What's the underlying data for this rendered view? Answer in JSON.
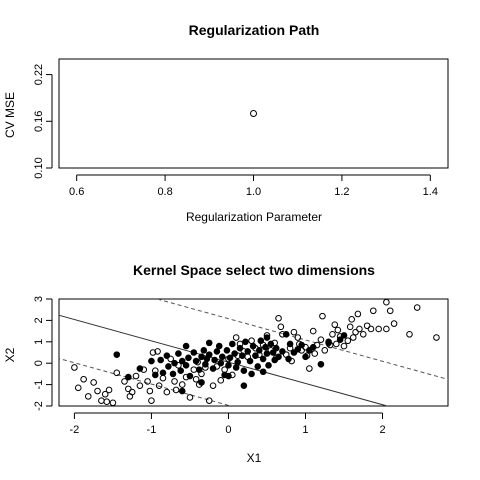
{
  "chart_data": [
    {
      "type": "scatter",
      "title": "Regularization Path",
      "xlabel": "Regularization Parameter",
      "ylabel": "CV MSE",
      "xlim": [
        0.56,
        1.44
      ],
      "ylim": [
        0.1,
        0.24
      ],
      "x_ticks": [
        "0.6",
        "0.8",
        "1.0",
        "1.2",
        "1.4"
      ],
      "y_ticks": [
        "0.10",
        "0.16",
        "0.22"
      ],
      "grid": false,
      "points": [
        {
          "x": 1.0,
          "y": 0.17
        }
      ]
    },
    {
      "type": "scatter",
      "title": "Kernel Space select two dimensions",
      "xlabel": "X1",
      "ylabel": "X2",
      "xlim": [
        -2.2,
        2.85
      ],
      "ylim": [
        -2.0,
        3.0
      ],
      "x_ticks": [
        "-2",
        "-1",
        "0",
        "1",
        "2"
      ],
      "y_ticks": [
        "-2",
        "-1",
        "0",
        "1",
        "2",
        "3"
      ],
      "grid": false,
      "decision_boundary": {
        "intercept": 0.05,
        "slope": -0.995
      },
      "margins": [
        {
          "intercept": 2.08,
          "slope": -0.995
        },
        {
          "intercept": -1.97,
          "slope": -0.995
        }
      ],
      "series": [
        {
          "marker": "open-circle",
          "points": [
            [
              -2.0,
              -0.2
            ],
            [
              -1.95,
              -1.15
            ],
            [
              -1.88,
              -0.75
            ],
            [
              -1.82,
              -1.55
            ],
            [
              -1.75,
              -0.9
            ],
            [
              -1.7,
              -1.3
            ],
            [
              -1.65,
              -1.75
            ],
            [
              -1.6,
              -1.45
            ],
            [
              -1.58,
              -1.8
            ],
            [
              -1.55,
              -1.25
            ],
            [
              -1.5,
              -1.85
            ],
            [
              -1.45,
              -0.45
            ],
            [
              -1.35,
              -0.85
            ],
            [
              -1.3,
              -1.2
            ],
            [
              -1.28,
              -1.55
            ],
            [
              -1.25,
              -1.35
            ],
            [
              -1.2,
              -0.6
            ],
            [
              -1.15,
              -1.05
            ],
            [
              -1.1,
              -0.3
            ],
            [
              -1.05,
              -0.85
            ],
            [
              -1.02,
              -1.3
            ],
            [
              -1.0,
              -1.75
            ],
            [
              -0.98,
              0.5
            ],
            [
              -0.95,
              -0.35
            ],
            [
              -0.92,
              0.55
            ],
            [
              -0.9,
              -1.05
            ],
            [
              -0.85,
              -0.7
            ],
            [
              -0.8,
              -1.35
            ],
            [
              -0.75,
              0.2
            ],
            [
              -0.7,
              -0.85
            ],
            [
              -0.68,
              -1.25
            ],
            [
              -0.65,
              -0.1
            ],
            [
              -0.6,
              -1.0
            ],
            [
              -0.55,
              -0.65
            ],
            [
              -0.5,
              -1.6
            ],
            [
              -0.45,
              -0.3
            ],
            [
              -0.42,
              -0.75
            ],
            [
              -0.4,
              0.05
            ],
            [
              -0.38,
              -1.0
            ],
            [
              -0.35,
              -0.5
            ],
            [
              -0.3,
              -0.2
            ],
            [
              -0.25,
              -1.75
            ],
            [
              -0.2,
              -1.05
            ],
            [
              -0.15,
              -0.15
            ],
            [
              -0.1,
              -0.8
            ],
            [
              -0.05,
              -0.3
            ],
            [
              0.0,
              0.2
            ],
            [
              0.05,
              -0.55
            ],
            [
              0.1,
              1.2
            ],
            [
              0.12,
              0.35
            ],
            [
              0.15,
              0.9
            ],
            [
              0.2,
              0.55
            ],
            [
              0.25,
              0.3
            ],
            [
              0.3,
              1.05
            ],
            [
              0.35,
              0.7
            ],
            [
              0.4,
              0.4
            ],
            [
              0.45,
              0.85
            ],
            [
              0.5,
              1.3
            ],
            [
              0.55,
              0.6
            ],
            [
              0.6,
              0.95
            ],
            [
              0.62,
              0.25
            ],
            [
              0.65,
              2.1
            ],
            [
              0.68,
              1.7
            ],
            [
              0.7,
              1.35
            ],
            [
              0.75,
              0.4
            ],
            [
              0.8,
              0.7
            ],
            [
              0.82,
              0.1
            ],
            [
              0.85,
              1.45
            ],
            [
              0.9,
              1.2
            ],
            [
              0.92,
              0.9
            ],
            [
              0.95,
              0.6
            ],
            [
              1.0,
              0.75
            ],
            [
              1.02,
              0.35
            ],
            [
              1.05,
              -0.25
            ],
            [
              1.1,
              1.5
            ],
            [
              1.12,
              0.45
            ],
            [
              1.15,
              0.85
            ],
            [
              1.2,
              1.1
            ],
            [
              1.22,
              2.2
            ],
            [
              1.25,
              0.6
            ],
            [
              1.3,
              0.95
            ],
            [
              1.32,
              0.85
            ],
            [
              1.35,
              1.35
            ],
            [
              1.38,
              1.8
            ],
            [
              1.4,
              0.9
            ],
            [
              1.42,
              1.55
            ],
            [
              1.45,
              1.25
            ],
            [
              1.5,
              0.8
            ],
            [
              1.55,
              1.05
            ],
            [
              1.58,
              1.7
            ],
            [
              1.6,
              2.05
            ],
            [
              1.62,
              1.2
            ],
            [
              1.65,
              1.45
            ],
            [
              1.68,
              2.3
            ],
            [
              1.7,
              1.6
            ],
            [
              1.75,
              1.35
            ],
            [
              1.8,
              1.75
            ],
            [
              1.85,
              1.6
            ],
            [
              1.88,
              2.45
            ],
            [
              1.95,
              1.6
            ],
            [
              2.05,
              1.6
            ],
            [
              2.1,
              2.45
            ],
            [
              2.15,
              1.85
            ],
            [
              2.35,
              1.35
            ],
            [
              2.45,
              2.6
            ],
            [
              2.7,
              1.2
            ],
            [
              2.05,
              2.85
            ]
          ]
        },
        {
          "marker": "filled-circle",
          "points": [
            [
              -1.45,
              0.4
            ],
            [
              -1.3,
              -0.65
            ],
            [
              -1.15,
              -0.25
            ],
            [
              -1.0,
              0.1
            ],
            [
              -0.95,
              -0.55
            ],
            [
              -0.88,
              0.15
            ],
            [
              -0.85,
              -0.45
            ],
            [
              -0.8,
              0.35
            ],
            [
              -0.78,
              -0.15
            ],
            [
              -0.72,
              -0.5
            ],
            [
              -0.7,
              0.0
            ],
            [
              -0.65,
              0.45
            ],
            [
              -0.62,
              -0.35
            ],
            [
              -0.6,
              0.1
            ],
            [
              -0.55,
              -0.1
            ],
            [
              -0.52,
              0.25
            ],
            [
              -0.5,
              -0.6
            ],
            [
              -0.45,
              0.5
            ],
            [
              -0.42,
              0.1
            ],
            [
              -0.38,
              -0.3
            ],
            [
              -0.35,
              0.3
            ],
            [
              -0.32,
              0.6
            ],
            [
              -0.3,
              -0.05
            ],
            [
              -0.28,
              0.2
            ],
            [
              -0.25,
              0.4
            ],
            [
              -0.2,
              -0.25
            ],
            [
              -0.18,
              0.15
            ],
            [
              -0.15,
              0.55
            ],
            [
              -0.12,
              0.8
            ],
            [
              -0.1,
              0.0
            ],
            [
              -0.08,
              0.3
            ],
            [
              -0.05,
              -0.55
            ],
            [
              -0.02,
              0.6
            ],
            [
              0.0,
              -0.1
            ],
            [
              0.02,
              0.25
            ],
            [
              0.05,
              0.9
            ],
            [
              0.08,
              0.45
            ],
            [
              0.1,
              -0.2
            ],
            [
              0.12,
              0.05
            ],
            [
              0.15,
              0.7
            ],
            [
              0.18,
              0.35
            ],
            [
              0.2,
              -0.35
            ],
            [
              0.22,
              1.0
            ],
            [
              0.25,
              0.55
            ],
            [
              0.28,
              0.1
            ],
            [
              0.3,
              -0.5
            ],
            [
              0.32,
              0.8
            ],
            [
              0.35,
              0.35
            ],
            [
              0.38,
              -0.15
            ],
            [
              0.4,
              0.6
            ],
            [
              0.42,
              1.05
            ],
            [
              0.45,
              0.2
            ],
            [
              0.48,
              0.75
            ],
            [
              0.5,
              0.45
            ],
            [
              0.52,
              -0.1
            ],
            [
              0.55,
              0.9
            ],
            [
              0.58,
              0.5
            ],
            [
              0.6,
              0.15
            ],
            [
              0.62,
              0.7
            ],
            [
              0.65,
              0.3
            ],
            [
              0.7,
              0.55
            ],
            [
              0.75,
              1.35
            ],
            [
              0.78,
              0.2
            ],
            [
              0.8,
              0.9
            ],
            [
              0.85,
              0.5
            ],
            [
              0.9,
              0.65
            ],
            [
              0.95,
              0.85
            ],
            [
              1.0,
              0.3
            ],
            [
              1.05,
              0.6
            ],
            [
              1.1,
              0.75
            ],
            [
              1.2,
              -0.05
            ],
            [
              1.3,
              1.0
            ],
            [
              1.45,
              1.1
            ],
            [
              0.2,
              -1.05
            ],
            [
              -0.6,
              -1.3
            ],
            [
              -0.35,
              -0.9
            ],
            [
              0.0,
              -0.6
            ],
            [
              0.45,
              -0.4
            ],
            [
              -0.25,
              0.95
            ],
            [
              -0.55,
              0.8
            ],
            [
              0.5,
              1.2
            ],
            [
              1.5,
              1.3
            ]
          ]
        }
      ]
    }
  ]
}
